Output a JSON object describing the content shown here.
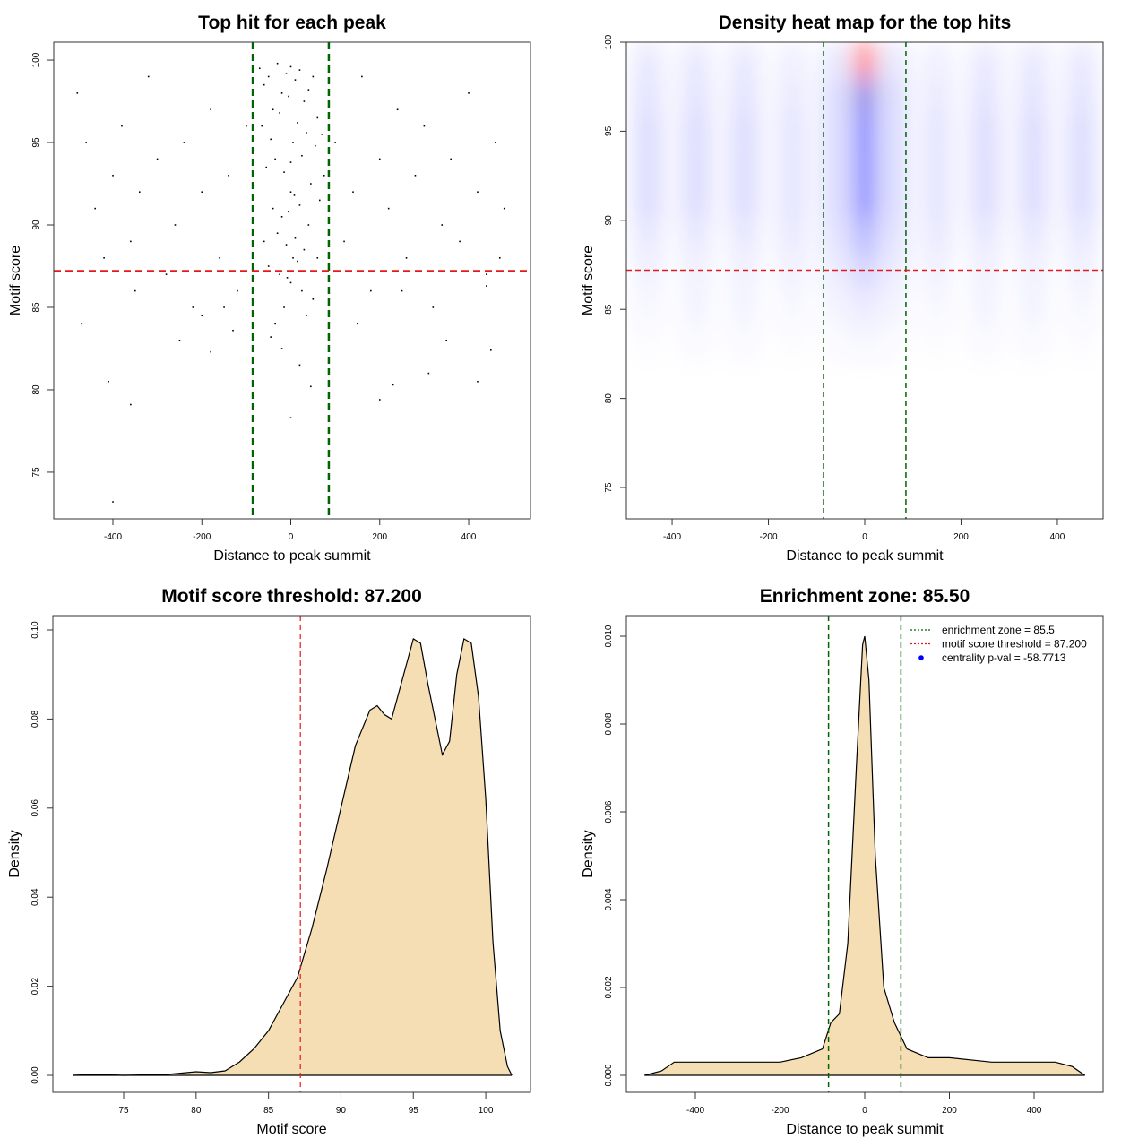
{
  "chart_data": [
    {
      "type": "scatter",
      "title": "Top hit for each peak",
      "xlabel": "Distance to peak summit",
      "ylabel": "Motif score",
      "xlim": [
        -533,
        539
      ],
      "ylim": [
        72.17,
        101.09
      ],
      "xticks": [
        -400,
        -200,
        0,
        200,
        400
      ],
      "yticks": [
        75,
        80,
        85,
        90,
        95,
        100
      ],
      "color": "#000000",
      "x": [
        -480,
        -460,
        -440,
        -420,
        -400,
        -380,
        -360,
        -340,
        -320,
        -300,
        -280,
        -260,
        -240,
        -220,
        -200,
        -180,
        -160,
        -140,
        -120,
        -100,
        100,
        120,
        140,
        160,
        180,
        200,
        220,
        240,
        260,
        280,
        300,
        320,
        340,
        360,
        380,
        400,
        420,
        440,
        460,
        480,
        -470,
        -350,
        -250,
        -150,
        150,
        250,
        350,
        470,
        -410,
        -360,
        -180,
        -130,
        200,
        310,
        420,
        450,
        -400,
        -200,
        230,
        440,
        -70,
        -60,
        -50,
        -40,
        -30,
        -20,
        -10,
        0,
        10,
        20,
        30,
        40,
        50,
        60,
        70,
        -65,
        -45,
        -25,
        -5,
        15,
        35,
        55,
        75,
        -55,
        -35,
        -15,
        5,
        25,
        45,
        65,
        -40,
        -20,
        0,
        20,
        40,
        -30,
        -10,
        10,
        30,
        -50,
        -25,
        0,
        25,
        50,
        -15,
        5,
        15,
        -5,
        0,
        -35,
        35,
        -60,
        60,
        -8,
        8,
        -20,
        20,
        0,
        -45,
        45
      ],
      "y": [
        98,
        95,
        91,
        88,
        93,
        96,
        89,
        92,
        99,
        94,
        87,
        90,
        95,
        85,
        92,
        97,
        88,
        93,
        86,
        96,
        95,
        89,
        92,
        99,
        86,
        94,
        91,
        97,
        88,
        93,
        96,
        85,
        90,
        94,
        89,
        98,
        92,
        87,
        95,
        91,
        84,
        86,
        83,
        85,
        84,
        86,
        83,
        88,
        80.5,
        79.1,
        82.3,
        83.6,
        79.4,
        81,
        80.5,
        82.4,
        73.2,
        84.5,
        80.3,
        86.3,
        99.5,
        98.5,
        99,
        97,
        99.8,
        98,
        99.2,
        99.6,
        98.8,
        99.4,
        97.5,
        98.2,
        99,
        96.5,
        95.5,
        96,
        95.2,
        96.8,
        97.8,
        96.2,
        95.6,
        94.8,
        93,
        93.5,
        94,
        93.2,
        95,
        94.2,
        92.5,
        91.5,
        91,
        90.5,
        92,
        91.2,
        90,
        89.5,
        88.8,
        89.2,
        88.5,
        87.5,
        87,
        86.5,
        86,
        85.5,
        85,
        88,
        87.8,
        90.8,
        93.8,
        84,
        84.5,
        89,
        88,
        86.8,
        91.8,
        82.5,
        81.5,
        78.3,
        83.2,
        80.2
      ],
      "vlines": [
        -85.5,
        85.5
      ],
      "vline_color": "#006400",
      "hlines": [
        87.2
      ],
      "hline_color": "#e31a1c",
      "line_width": 2.5
    },
    {
      "type": "heatmap",
      "title": "Density heat map for the top hits",
      "xlabel": "Distance to peak summit",
      "ylabel": "Motif score",
      "xlim": [
        -495,
        495
      ],
      "ylim": [
        73.24,
        100
      ],
      "xticks": [
        -400,
        -200,
        0,
        200,
        400
      ],
      "yticks": [
        75,
        80,
        85,
        90,
        95,
        100
      ],
      "x": [
        -450,
        -350,
        -250,
        -150,
        -60,
        0,
        60,
        150,
        250,
        350,
        450
      ],
      "y": [
        99,
        97,
        95,
        93,
        91,
        89,
        87,
        85,
        83
      ],
      "z": [
        [
          0.08,
          0.08,
          0.08,
          0.06,
          0.1,
          1.0,
          0.1,
          0.06,
          0.08,
          0.08,
          0.08
        ],
        [
          0.1,
          0.1,
          0.1,
          0.08,
          0.15,
          0.75,
          0.15,
          0.08,
          0.1,
          0.1,
          0.1
        ],
        [
          0.12,
          0.12,
          0.12,
          0.1,
          0.15,
          0.7,
          0.15,
          0.1,
          0.12,
          0.12,
          0.12
        ],
        [
          0.12,
          0.12,
          0.12,
          0.1,
          0.15,
          0.65,
          0.15,
          0.1,
          0.12,
          0.12,
          0.12
        ],
        [
          0.12,
          0.12,
          0.12,
          0.1,
          0.15,
          0.6,
          0.15,
          0.1,
          0.12,
          0.12,
          0.12
        ],
        [
          0.08,
          0.08,
          0.08,
          0.08,
          0.12,
          0.35,
          0.12,
          0.08,
          0.08,
          0.08,
          0.08
        ],
        [
          0.05,
          0.05,
          0.05,
          0.05,
          0.08,
          0.2,
          0.08,
          0.05,
          0.05,
          0.05,
          0.05
        ],
        [
          0.03,
          0.04,
          0.04,
          0.03,
          0.05,
          0.1,
          0.05,
          0.03,
          0.04,
          0.04,
          0.03
        ],
        [
          0.01,
          0.02,
          0.02,
          0.01,
          0.02,
          0.04,
          0.02,
          0.01,
          0.02,
          0.02,
          0.01
        ]
      ],
      "vlines": [
        -85.5,
        85.5
      ],
      "vline_color": "#006400",
      "hlines": [
        87.2
      ],
      "hline_color": "#e31a1c",
      "line_width": 1.5
    },
    {
      "type": "area",
      "title": "Motif score threshold: 87.200",
      "xlabel": "Motif score",
      "ylabel": "Density",
      "xlim": [
        70.11,
        103.09
      ],
      "ylim": [
        -0.00382,
        0.10322
      ],
      "xticks": [
        75,
        80,
        85,
        90,
        95,
        100
      ],
      "yticks": [
        {
          "value": 0,
          "label": "0.00"
        },
        {
          "value": 0.02,
          "label": "0.02"
        },
        {
          "value": 0.04,
          "label": "0.04"
        },
        {
          "value": 0.06,
          "label": "0.06"
        },
        {
          "value": 0.08,
          "label": "0.08"
        },
        {
          "value": 0.1,
          "label": "0.10"
        }
      ],
      "color": "#f5deb3",
      "x": [
        71.5,
        73,
        75,
        78,
        80,
        81,
        82,
        83,
        84,
        85,
        86,
        87,
        88,
        89,
        90,
        91,
        92,
        92.5,
        93,
        93.5,
        94,
        95,
        95.5,
        96,
        97,
        97.5,
        98,
        98.5,
        99,
        99.5,
        100,
        100.5,
        101,
        101.5,
        101.8
      ],
      "y": [
        0,
        0.0002,
        0,
        0.0002,
        0.0008,
        0.0006,
        0.001,
        0.003,
        0.006,
        0.01,
        0.016,
        0.022,
        0.033,
        0.046,
        0.06,
        0.074,
        0.082,
        0.083,
        0.081,
        0.08,
        0.086,
        0.098,
        0.097,
        0.088,
        0.072,
        0.075,
        0.09,
        0.098,
        0.097,
        0.085,
        0.062,
        0.03,
        0.01,
        0.002,
        0
      ],
      "vlines": [
        87.2
      ],
      "vline_color": "#e31a1c",
      "hlines": [],
      "line_width": 1.2
    },
    {
      "type": "area",
      "title": "Enrichment zone: 85.50",
      "xlabel": "Distance to peak summit",
      "ylabel": "Density",
      "xlim": [
        -563,
        563
      ],
      "ylim": [
        -0.000388,
        0.01047
      ],
      "xticks": [
        -400,
        -200,
        0,
        200,
        400
      ],
      "yticks": [
        {
          "value": 0,
          "label": "0.000"
        },
        {
          "value": 0.002,
          "label": "0.002"
        },
        {
          "value": 0.004,
          "label": "0.004"
        },
        {
          "value": 0.006,
          "label": "0.006"
        },
        {
          "value": 0.008,
          "label": "0.008"
        },
        {
          "value": 0.01,
          "label": "0.010"
        }
      ],
      "color": "#f5deb3",
      "x": [
        -520,
        -480,
        -450,
        -400,
        -300,
        -200,
        -150,
        -100,
        -80,
        -60,
        -40,
        -20,
        -5,
        0,
        10,
        25,
        45,
        70,
        100,
        150,
        200,
        300,
        400,
        450,
        490,
        520
      ],
      "y": [
        0,
        0.0001,
        0.0003,
        0.0003,
        0.0003,
        0.0003,
        0.0004,
        0.0006,
        0.0012,
        0.0014,
        0.003,
        0.007,
        0.0098,
        0.01,
        0.009,
        0.005,
        0.002,
        0.0012,
        0.0006,
        0.0004,
        0.0004,
        0.0003,
        0.0003,
        0.0003,
        0.0002,
        0
      ],
      "vlines": [
        -85.5,
        85.5
      ],
      "vline_color": "#006400",
      "hlines": [],
      "line_width": 1.5,
      "legend_position": "topright",
      "legend": [
        {
          "label": "enrichment zone = 85.5",
          "color": "#006400",
          "style": "dotted"
        },
        {
          "label": "motif score threshold = 87.200",
          "color": "#e31a1c",
          "style": "dotted"
        },
        {
          "label": "centrality p-val = -58.7713",
          "color": "#0000ff",
          "style": "point"
        }
      ]
    }
  ]
}
